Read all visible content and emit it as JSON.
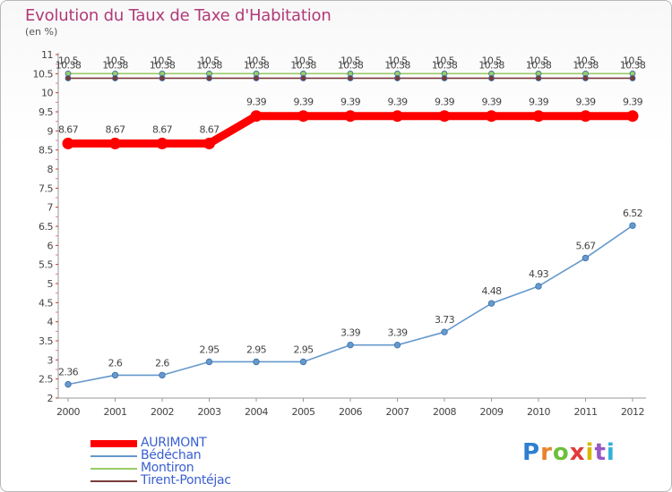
{
  "title": "Evolution du Taux de Taxe d'Habitation",
  "unit_label": "(en %)",
  "logo": "Proxiti",
  "chart_data": {
    "type": "line",
    "title": "Evolution du Taux de Taxe d'Habitation",
    "ylabel": "(en %)",
    "x": [
      "2000",
      "2001",
      "2002",
      "2003",
      "2004",
      "2005",
      "2006",
      "2007",
      "2008",
      "2009",
      "2010",
      "2011",
      "2012"
    ],
    "ylim": [
      2,
      11
    ],
    "yticks": [
      "2",
      "2.5",
      "3",
      "3.5",
      "4",
      "4.5",
      "5",
      "5.5",
      "6",
      "6.5",
      "7",
      "7.5",
      "8",
      "8.5",
      "9",
      "9.5",
      "10",
      "10.5",
      "11"
    ],
    "grid": false,
    "legend_position": "bottom-left",
    "series": [
      {
        "name": "AURIMONT",
        "color": "#ff0000",
        "values": [
          8.67,
          8.67,
          8.67,
          8.67,
          9.39,
          9.39,
          9.39,
          9.39,
          9.39,
          9.39,
          9.39,
          9.39,
          9.39
        ],
        "labels": [
          "8.67",
          "8.67",
          "8.67",
          "8.67",
          "9.39",
          "9.39",
          "9.39",
          "9.39",
          "9.39",
          "9.39",
          "9.39",
          "9.39",
          "9.39"
        ]
      },
      {
        "name": "Bédéchan",
        "color": "#6699cc",
        "values": [
          2.36,
          2.6,
          2.6,
          2.95,
          2.95,
          2.95,
          3.39,
          3.39,
          3.73,
          4.48,
          4.93,
          5.67,
          6.52
        ],
        "labels": [
          "2.36",
          "2.6",
          "2.6",
          "2.95",
          "2.95",
          "2.95",
          "3.39",
          "3.39",
          "3.73",
          "4.48",
          "4.93",
          "5.67",
          "6.52"
        ]
      },
      {
        "name": "Montiron",
        "color": "#99cc66",
        "values": [
          10.5,
          10.5,
          10.5,
          10.5,
          10.5,
          10.5,
          10.5,
          10.5,
          10.5,
          10.5,
          10.5,
          10.5,
          10.5
        ],
        "labels": [
          "10.5",
          "10.5",
          "10.5",
          "10.5",
          "10.5",
          "10.5",
          "10.5",
          "10.5",
          "10.5",
          "10.5",
          "10.5",
          "10.5",
          "10.5"
        ]
      },
      {
        "name": "Tirent-Pontéjac",
        "color": "#7a3b3b",
        "values": [
          10.38,
          10.38,
          10.38,
          10.38,
          10.38,
          10.38,
          10.38,
          10.38,
          10.38,
          10.38,
          10.38,
          10.38,
          10.38
        ],
        "labels": [
          "10.38",
          "10.38",
          "10.38",
          "10.38",
          "10.38",
          "10.38",
          "10.38",
          "10.38",
          "10.38",
          "10.38",
          "10.38",
          "10.38",
          "10.38"
        ]
      }
    ]
  }
}
